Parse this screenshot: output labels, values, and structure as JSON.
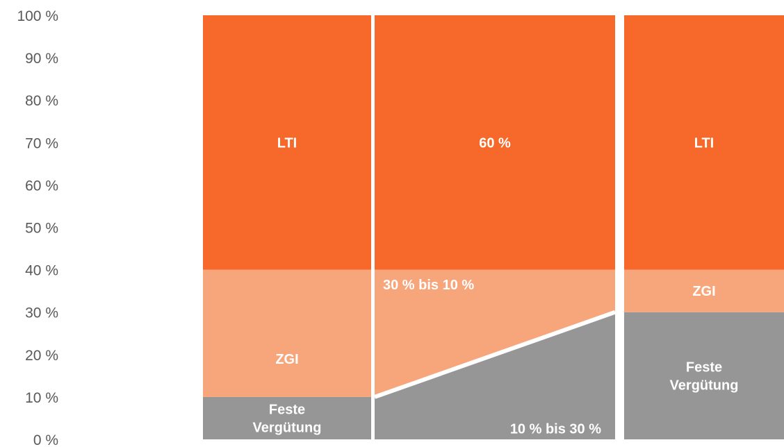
{
  "chart_data": {
    "type": "bar",
    "stacked": true,
    "ylim": [
      0,
      100
    ],
    "y_ticks": [
      "0 %",
      "10 %",
      "20 %",
      "30 %",
      "40 %",
      "50 %",
      "60 %",
      "70 %",
      "80 %",
      "90 %",
      "100 %"
    ],
    "grid": false,
    "colors": {
      "lti": "#F7692A",
      "zgi": "#F7A57A",
      "fixed": "#969696"
    },
    "bars": [
      {
        "segments": [
          {
            "key": "fixed",
            "from": 0,
            "to": 10,
            "label": [
              "Feste",
              "Vergütung"
            ]
          },
          {
            "key": "zgi",
            "from": 10,
            "to": 40,
            "label": [
              "ZGI"
            ]
          },
          {
            "key": "lti",
            "from": 40,
            "to": 100,
            "label": [
              "LTI"
            ]
          }
        ]
      },
      {
        "segments": [
          {
            "key": "fixed",
            "from": 0,
            "to_left": 10,
            "to_right": 30,
            "label": [
              "10 % bis 30 %"
            ]
          },
          {
            "key": "zgi",
            "from_left": 10,
            "from_right": 30,
            "to": 40,
            "label": [
              "30 % bis 10 %"
            ]
          },
          {
            "key": "lti",
            "from": 40,
            "to": 100,
            "label": [
              "60 %"
            ]
          }
        ]
      },
      {
        "segments": [
          {
            "key": "fixed",
            "from": 0,
            "to": 30,
            "label": [
              "Feste",
              "Vergütung"
            ]
          },
          {
            "key": "zgi",
            "from": 30,
            "to": 40,
            "label": [
              "ZGI"
            ]
          },
          {
            "key": "lti",
            "from": 40,
            "to": 100,
            "label": [
              "LTI"
            ]
          }
        ]
      }
    ]
  }
}
